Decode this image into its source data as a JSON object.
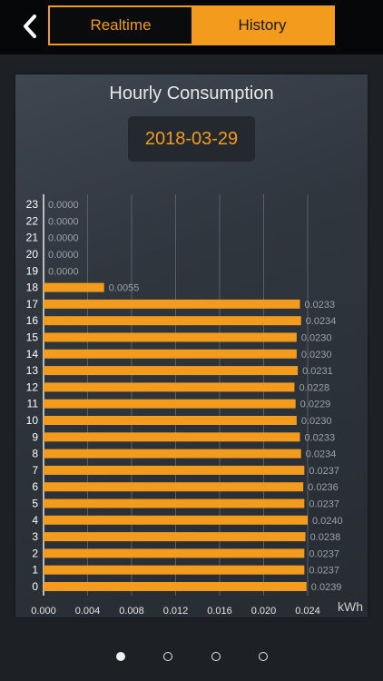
{
  "header": {
    "back_icon": "chevron-left-icon",
    "tabs": [
      {
        "label": "Realtime",
        "active": false
      },
      {
        "label": "History",
        "active": true
      }
    ],
    "accent_color": "#f39b1c"
  },
  "panel": {
    "title": "Hourly Consumption",
    "date": "2018-03-29"
  },
  "chart_data": {
    "type": "bar",
    "orientation": "horizontal",
    "unit": "kWh",
    "categories": [
      "0",
      "1",
      "2",
      "3",
      "4",
      "5",
      "6",
      "7",
      "8",
      "9",
      "10",
      "11",
      "12",
      "13",
      "14",
      "15",
      "16",
      "17",
      "18",
      "19",
      "20",
      "21",
      "22",
      "23"
    ],
    "values": [
      0.0239,
      0.0237,
      0.0237,
      0.0238,
      0.024,
      0.0237,
      0.0236,
      0.0237,
      0.0234,
      0.0233,
      0.023,
      0.0229,
      0.0228,
      0.0231,
      0.023,
      0.023,
      0.0234,
      0.0233,
      0.0055,
      0.0,
      0.0,
      0.0,
      0.0,
      0.0
    ],
    "value_labels": [
      "0.0239",
      "0.0237",
      "0.0237",
      "0.0238",
      "0.0240",
      "0.0237",
      "0.0236",
      "0.0237",
      "0.0234",
      "0.0233",
      "0.0230",
      "0.0229",
      "0.0228",
      "0.0231",
      "0.0230",
      "0.0230",
      "0.0234",
      "0.0233",
      "0.0055",
      "0.0000",
      "0.0000",
      "0.0000",
      "0.0000",
      "0.0000"
    ],
    "xticks": [
      "0.000",
      "0.004",
      "0.008",
      "0.012",
      "0.016",
      "0.020",
      "0.024"
    ],
    "xlim": [
      0,
      0.026
    ],
    "xlabel": "kWh",
    "grid": true,
    "bar_color": "#f39b1c"
  },
  "pager": {
    "pages": 4,
    "active_index": 0
  }
}
